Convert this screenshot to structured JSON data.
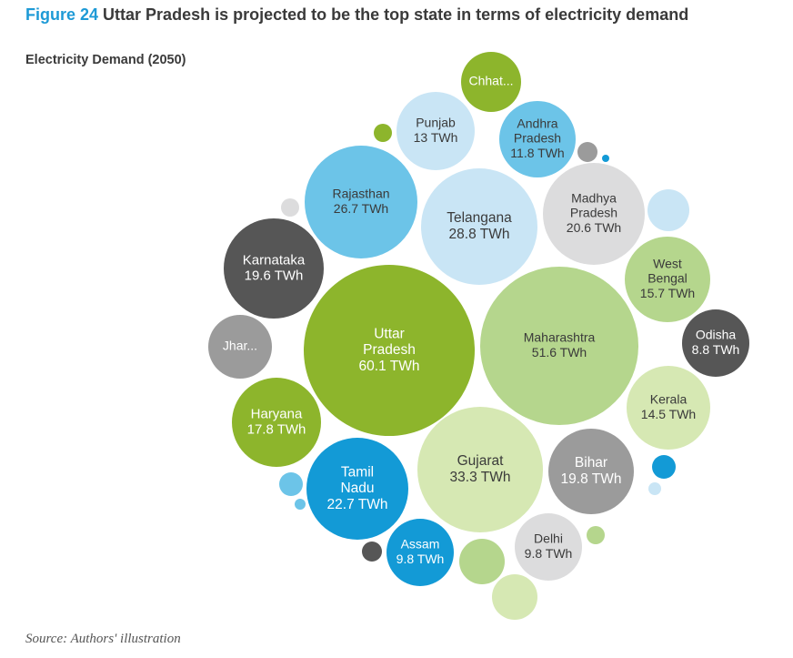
{
  "header": {
    "fig_label": "Figure 24",
    "title": "Uttar Pradesh is projected to be the top state in terms of electricity demand",
    "subtitle": "Electricity Demand (2050)",
    "source": "Source: Authors' illustration"
  },
  "chart_data": {
    "type": "bubble",
    "title": "Electricity Demand (2050)",
    "unit": "TWh",
    "series": [
      {
        "label": [
          "Uttar",
          "Pradesh",
          "60.1 TWh"
        ],
        "name": "Uttar Pradesh",
        "value": 60.1,
        "color": "#8db52c"
      },
      {
        "label": [
          "Maharashtra",
          "51.6 TWh"
        ],
        "name": "Maharashtra",
        "value": 51.6,
        "color": "#b5d68d"
      },
      {
        "label": [
          "Gujarat",
          "33.3 TWh"
        ],
        "name": "Gujarat",
        "value": 33.3,
        "color": "#d6e8b3"
      },
      {
        "label": [
          "Telangana",
          "28.8 TWh"
        ],
        "name": "Telangana",
        "value": 28.8,
        "color": "#c9e5f5"
      },
      {
        "label": [
          "Rajasthan",
          "26.7 TWh"
        ],
        "name": "Rajasthan",
        "value": 26.7,
        "color": "#6cc4e8"
      },
      {
        "label": [
          "Tamil",
          "Nadu",
          "22.7 TWh"
        ],
        "name": "Tamil Nadu",
        "value": 22.7,
        "color": "#139ad6"
      },
      {
        "label": [
          "Madhya",
          "Pradesh",
          "20.6 TWh"
        ],
        "name": "Madhya Pradesh",
        "value": 20.6,
        "color": "#dcdcdd"
      },
      {
        "label": [
          "Bihar",
          "19.8 TWh"
        ],
        "name": "Bihar",
        "value": 19.8,
        "color": "#9b9b9b"
      },
      {
        "label": [
          "Karnataka",
          "19.6 TWh"
        ],
        "name": "Karnataka",
        "value": 19.6,
        "color": "#565656"
      },
      {
        "label": [
          "Haryana",
          "17.8 TWh"
        ],
        "name": "Haryana",
        "value": 17.8,
        "color": "#8db52c"
      },
      {
        "label": [
          "West",
          "Bengal",
          "15.7 TWh"
        ],
        "name": "West Bengal",
        "value": 15.7,
        "color": "#b5d68d"
      },
      {
        "label": [
          "Kerala",
          "14.5 TWh"
        ],
        "name": "Kerala",
        "value": 14.5,
        "color": "#d6e8b3"
      },
      {
        "label": [
          "Punjab",
          "13 TWh"
        ],
        "name": "Punjab",
        "value": 13,
        "color": "#c9e5f5"
      },
      {
        "label": [
          "Andhra",
          "Pradesh",
          "11.8 TWh"
        ],
        "name": "Andhra Pradesh",
        "value": 11.8,
        "color": "#6cc4e8"
      },
      {
        "label": [
          "Assam",
          "9.8 TWh"
        ],
        "name": "Assam",
        "value": 9.8,
        "color": "#139ad6"
      },
      {
        "label": [
          "Delhi",
          "9.8 TWh"
        ],
        "name": "Delhi",
        "value": 9.8,
        "color": "#dcdcdd"
      },
      {
        "label": [
          "Odisha",
          "8.8 TWh"
        ],
        "name": "Odisha",
        "value": 8.8,
        "color": "#565656"
      },
      {
        "label": [
          "Jhar..."
        ],
        "name": "Jhar...",
        "value": null,
        "color": "#9b9b9b"
      },
      {
        "label": [
          "Chhat..."
        ],
        "name": "Chhat...",
        "value": null,
        "color": "#8db52c"
      },
      {
        "label": [],
        "name": "",
        "value": null,
        "color": "#c9e5f5"
      },
      {
        "label": [],
        "name": "",
        "value": null,
        "color": "#b5d68d"
      },
      {
        "label": [],
        "name": "",
        "value": null,
        "color": "#d6e8b3"
      },
      {
        "label": [],
        "name": "",
        "value": null,
        "color": "#6cc4e8"
      },
      {
        "label": [],
        "name": "",
        "value": null,
        "color": "#139ad6"
      },
      {
        "label": [],
        "name": "",
        "value": null,
        "color": "#b5d68d"
      },
      {
        "label": [],
        "name": "",
        "value": null,
        "color": "#9b9b9b"
      },
      {
        "label": [],
        "name": "",
        "value": null,
        "color": "#8db52c"
      },
      {
        "label": [],
        "name": "",
        "value": null,
        "color": "#dcdcdd"
      },
      {
        "label": [],
        "name": "",
        "value": null,
        "color": "#565656"
      },
      {
        "label": [],
        "name": "",
        "value": null,
        "color": "#6cc4e8"
      },
      {
        "label": [],
        "name": "",
        "value": null,
        "color": "#c9e5f5"
      },
      {
        "label": [],
        "name": "",
        "value": null,
        "color": "#139ad6"
      }
    ],
    "colors": {
      "title_accent": "#1e9ad6",
      "dark_text": "#3a3a3a",
      "light_text": "#ffffff"
    }
  }
}
